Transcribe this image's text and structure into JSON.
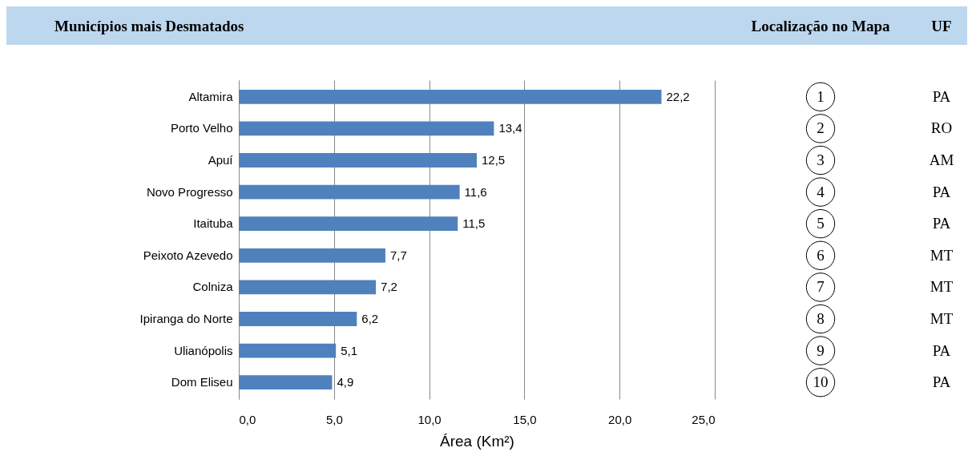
{
  "chart_data": {
    "type": "bar",
    "orientation": "horizontal",
    "title": "Municípios mais Desmatados",
    "xlabel": "Área (Km²)",
    "categories": [
      "Altamira",
      "Porto Velho",
      "Apuí",
      "Novo Progresso",
      "Itaituba",
      "Peixoto Azevedo",
      "Colniza",
      "Ipiranga do Norte",
      "Ulianópolis",
      "Dom Eliseu"
    ],
    "values": [
      22.2,
      13.4,
      12.5,
      11.6,
      11.5,
      7.7,
      7.2,
      6.2,
      5.1,
      4.9
    ],
    "value_labels": [
      "22,2",
      "13,4",
      "12,5",
      "11,6",
      "11,5",
      "7,7",
      "7,2",
      "6,2",
      "5,1",
      "4,9"
    ],
    "color": "#4f81bd",
    "xlim": [
      0,
      25
    ],
    "xticks": [
      {
        "value": 0,
        "label": "0,0"
      },
      {
        "value": 5,
        "label": "5,0"
      },
      {
        "value": 10,
        "label": "10,0"
      },
      {
        "value": 15,
        "label": "15,0"
      },
      {
        "value": 20,
        "label": "20,0"
      },
      {
        "value": 25,
        "label": "25,0"
      }
    ],
    "grid": "x",
    "annotations": [
      "Localização no Mapa",
      "UF",
      "1",
      "2",
      "3",
      "4",
      "5",
      "6",
      "7",
      "8",
      "9",
      "10",
      "PA",
      "RO",
      "AM",
      "PA",
      "PA",
      "MT",
      "MT",
      "MT",
      "PA",
      "PA"
    ]
  }
}
